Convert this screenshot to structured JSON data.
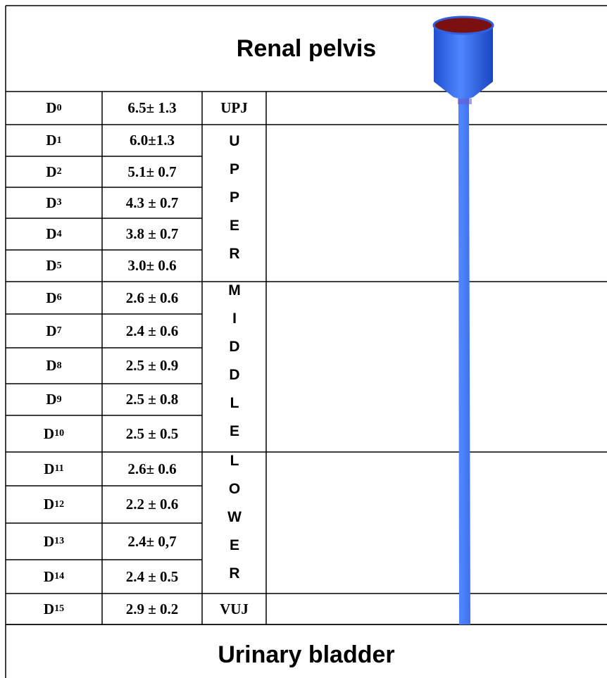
{
  "header": {
    "title": "Renal pelvis"
  },
  "footer": {
    "title": "Urinary bladder"
  },
  "segments": [
    {
      "label": "UPJ",
      "rows": [
        {
          "name": "D",
          "sub": "0",
          "value": "6.5± 1.3"
        }
      ]
    },
    {
      "label": "UPPER",
      "rows": [
        {
          "name": "D",
          "sub": "1",
          "value": "6.0±1.3"
        },
        {
          "name": "D",
          "sub": "2",
          "value": "5.1± 0.7"
        },
        {
          "name": "D",
          "sub": "3",
          "value": "4.3 ± 0.7"
        },
        {
          "name": "D",
          "sub": "4",
          "value": "3.8 ± 0.7"
        },
        {
          "name": "D",
          "sub": "5",
          "value": "3.0± 0.6"
        }
      ]
    },
    {
      "label": "MIDDLE",
      "rows": [
        {
          "name": "D",
          "sub": "6",
          "value": "2.6 ± 0.6"
        },
        {
          "name": "D",
          "sub": "7",
          "value": "2.4 ± 0.6"
        },
        {
          "name": "D",
          "sub": "8",
          "value": "2.5 ± 0.9"
        },
        {
          "name": "D",
          "sub": "9",
          "value": "2.5 ± 0.8"
        },
        {
          "name": "D",
          "sub": "10",
          "value": "2.5 ± 0.5"
        }
      ]
    },
    {
      "label": "LOWER",
      "rows": [
        {
          "name": "D",
          "sub": "11",
          "value": "2.6± 0.6"
        },
        {
          "name": "D",
          "sub": "12",
          "value": "2.2 ± 0.6"
        },
        {
          "name": "D",
          "sub": "13",
          "value": "2.4± 0,7"
        },
        {
          "name": "D",
          "sub": "14",
          "value": "2.4 ± 0.5"
        }
      ]
    },
    {
      "label": "VUJ",
      "rows": [
        {
          "name": "D",
          "sub": "15",
          "value": "2.9 ± 0.2"
        }
      ]
    }
  ]
}
